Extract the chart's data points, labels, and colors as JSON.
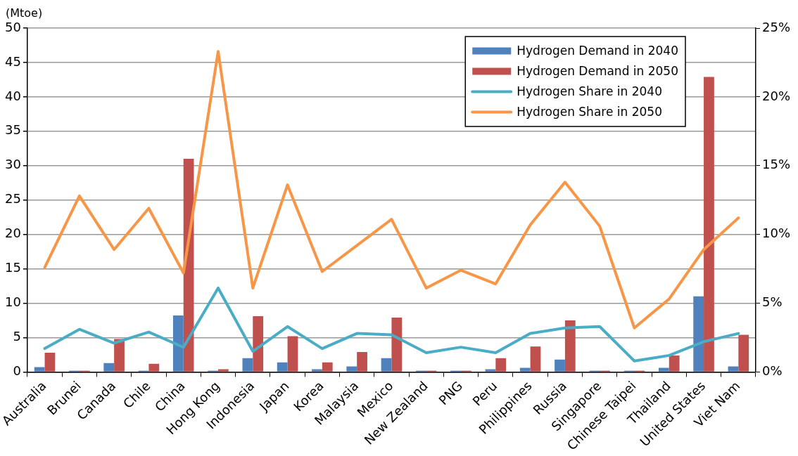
{
  "chart_data": {
    "type": "bar",
    "ylabel": "(Mtoe)",
    "categories": [
      "Australia",
      "Brunei",
      "Canada",
      "Chile",
      "China",
      "Hong Kong",
      "Indonesia",
      "Japan",
      "Korea",
      "Malaysia",
      "Mexico",
      "New Zealand",
      "PNG",
      "Peru",
      "Philippines",
      "Russia",
      "Singapore",
      "Chinese Taipei",
      "Thailand",
      "United States",
      "Viet Nam"
    ],
    "series": [
      {
        "name": "Hydrogen Demand in 2040",
        "color": "#4f81bd",
        "values": [
          0.7,
          0.2,
          1.3,
          0.2,
          8.2,
          0.2,
          2.0,
          1.4,
          0.4,
          0.8,
          2.0,
          0.2,
          0.2,
          0.4,
          0.6,
          1.8,
          0.2,
          0.2,
          0.6,
          11.0,
          0.8
        ]
      },
      {
        "name": "Hydrogen Demand in 2050",
        "color": "#c0504d",
        "values": [
          2.8,
          0.2,
          4.8,
          1.2,
          31.0,
          0.4,
          8.1,
          5.2,
          1.4,
          2.9,
          7.9,
          0.2,
          0.2,
          2.0,
          3.7,
          7.5,
          0.2,
          0.2,
          2.4,
          42.9,
          5.4
        ]
      },
      {
        "name": "Hydrogen Share in 2040",
        "type": "line",
        "axis": "y2",
        "color": "#4bacc6",
        "values": [
          1.7,
          3.1,
          2.1,
          2.9,
          1.8,
          6.1,
          1.5,
          3.3,
          1.7,
          2.8,
          2.7,
          1.4,
          1.8,
          1.4,
          2.8,
          3.2,
          3.3,
          0.8,
          1.2,
          2.2,
          2.8
        ]
      },
      {
        "name": "Hydrogen Share in 2050",
        "type": "line",
        "axis": "y2",
        "color": "#f79646",
        "values": [
          7.6,
          12.8,
          8.9,
          11.9,
          7.2,
          23.3,
          6.1,
          13.6,
          7.3,
          9.2,
          11.1,
          6.1,
          7.4,
          6.4,
          10.7,
          13.8,
          10.6,
          3.2,
          5.3,
          8.9,
          11.2
        ]
      }
    ],
    "ylim": [
      0,
      50
    ],
    "yticks": [
      0,
      5,
      10,
      15,
      20,
      25,
      30,
      35,
      40,
      45,
      50
    ],
    "y2lim": [
      0,
      25
    ],
    "y2ticks": [
      {
        "value": 0,
        "label": "0%"
      },
      {
        "value": 5,
        "label": "5%"
      },
      {
        "value": 10,
        "label": "10%"
      },
      {
        "value": 15,
        "label": "15%"
      },
      {
        "value": 20,
        "label": "20%"
      },
      {
        "value": 25,
        "label": "25%"
      }
    ],
    "grid": "y",
    "legend": "top right",
    "marker": "none",
    "line_style": "solid"
  }
}
